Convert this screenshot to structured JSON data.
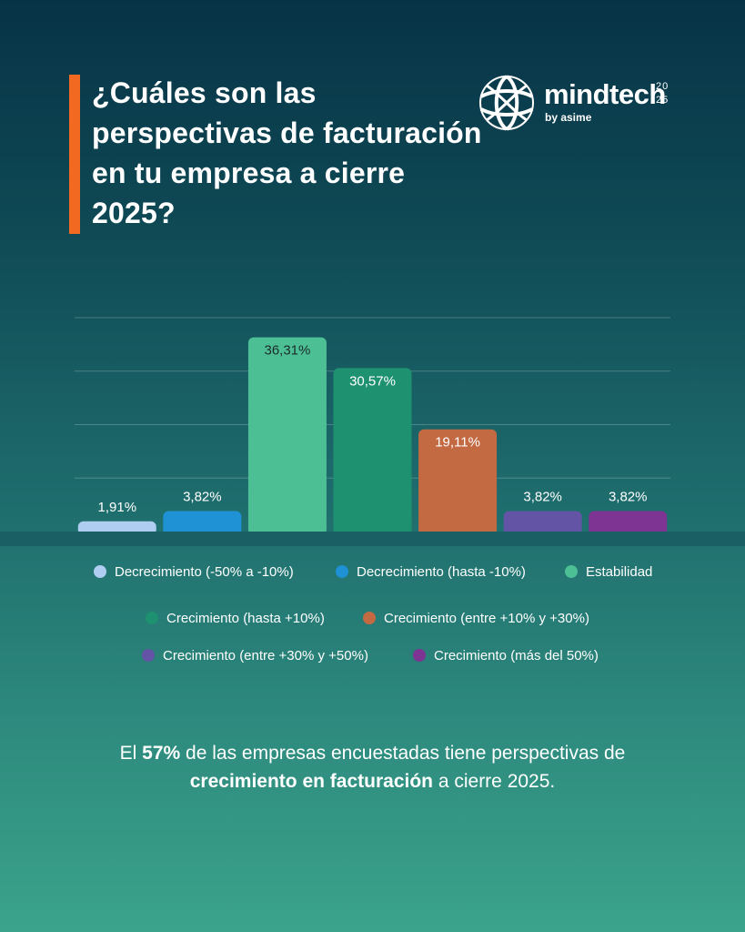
{
  "title": "¿Cuáles son las perspectivas de facturación en tu empresa a cierre 2025?",
  "logo": {
    "name": "mindtech",
    "subtitle": "by asime",
    "year_top": "20",
    "year_bottom": "25"
  },
  "chart_data": {
    "type": "bar",
    "categories": [
      "Decrecimiento (-50% a -10%)",
      "Decrecimiento (hasta -10%)",
      "Estabilidad",
      "Crecimiento (hasta +10%)",
      "Crecimiento (entre +10% y +30%)",
      "Crecimiento (entre +30% y +50%)",
      "Crecimiento (más del 50%)"
    ],
    "values": [
      1.91,
      3.82,
      36.31,
      30.57,
      19.11,
      3.82,
      3.82
    ],
    "value_labels": [
      "1,91%",
      "3,82%",
      "36,31%",
      "30,57%",
      "19,11%",
      "3,82%",
      "3,82%"
    ],
    "colors": [
      "#aecdf0",
      "#1f92d6",
      "#4dbf95",
      "#1e9170",
      "#c46a43",
      "#6354a5",
      "#7d3493"
    ],
    "ylim": [
      0,
      40
    ],
    "grid": true,
    "legend_position": "bottom"
  },
  "summary": {
    "part1": "El ",
    "highlight1": "57%",
    "part2": " de las empresas encuestadas tiene perspectivas de ",
    "highlight2": "crecimiento en facturación",
    "part3": " a cierre 2025."
  }
}
